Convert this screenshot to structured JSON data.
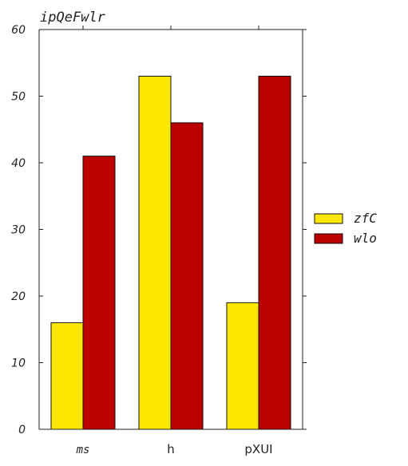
{
  "chart_data": {
    "type": "bar",
    "title": "ipQeFwlr",
    "xlabel": "",
    "ylabel": "",
    "categories": [
      "ms",
      "h",
      "pXUI"
    ],
    "series": [
      {
        "name": "zfC",
        "values": [
          16,
          53,
          19
        ],
        "color": "#FFE800"
      },
      {
        "name": "wlo",
        "values": [
          41,
          46,
          53
        ],
        "color": "#BB0000"
      }
    ],
    "ylim": [
      0,
      60
    ],
    "yticks": [
      0,
      10,
      20,
      30,
      40,
      50,
      60
    ],
    "grid": false,
    "legend_position": "right"
  }
}
